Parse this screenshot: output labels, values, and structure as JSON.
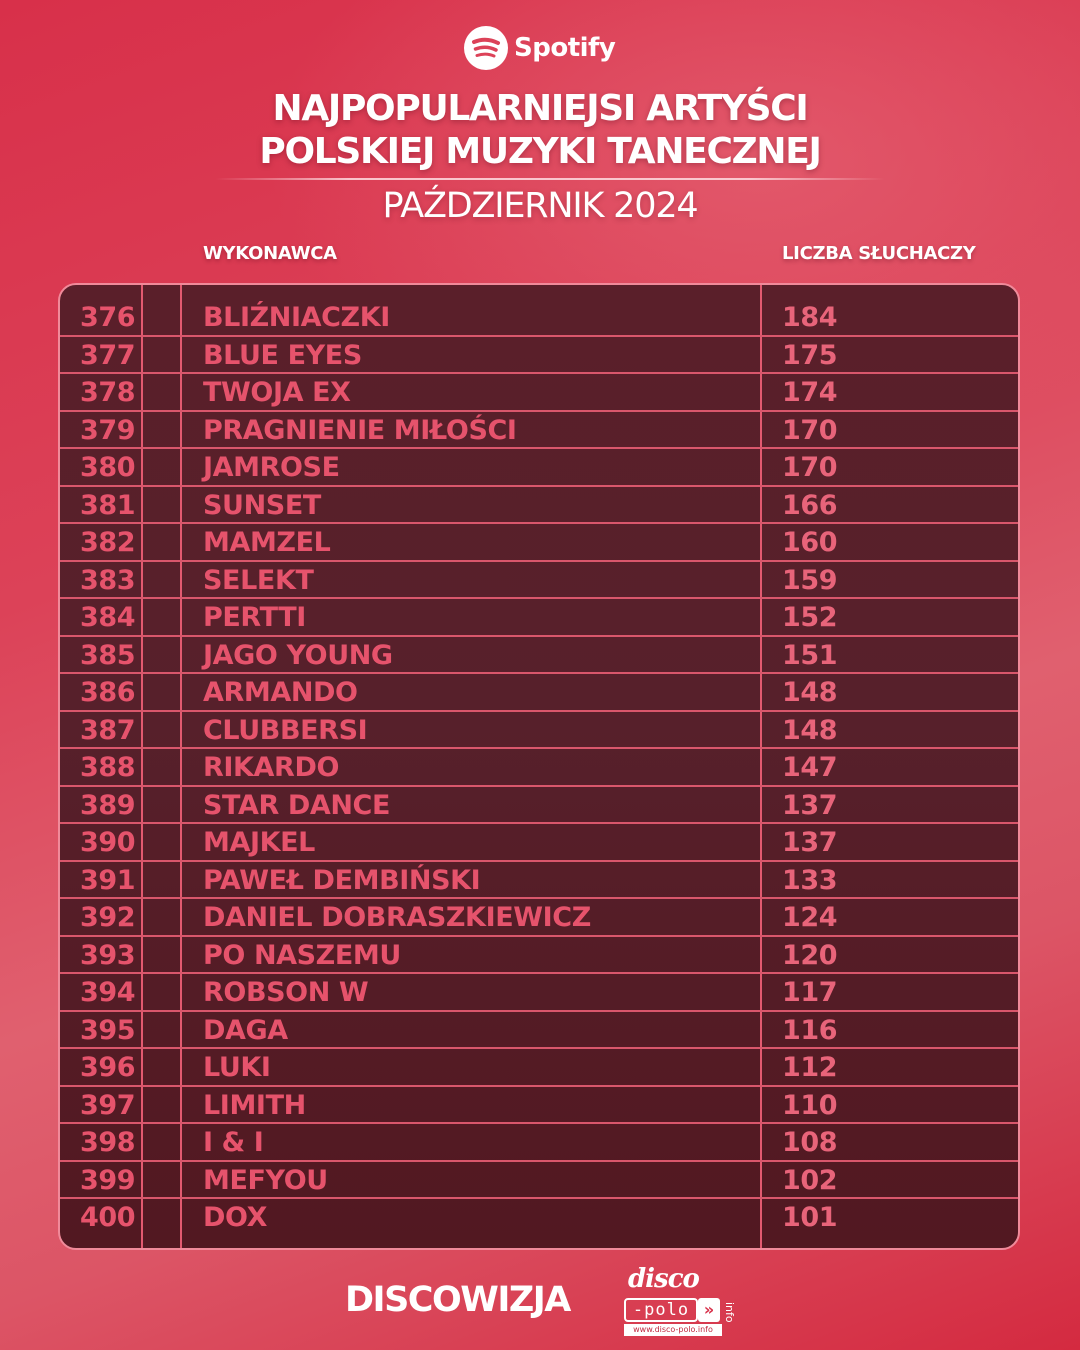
{
  "brand": {
    "logo_icon": "spotify-icon",
    "name": "Spotify"
  },
  "header": {
    "title_line1": "NAJPOPULARNIEJSI ARTYŚCI",
    "title_line2": "POLSKIEJ MUZYKI TANECZNEJ",
    "subtitle": "PAŹDZIERNIK 2024"
  },
  "table": {
    "columns": {
      "artist": "WYKONAWCA",
      "listeners": "LICZBA SŁUCHACZY"
    },
    "rows": [
      {
        "rank": "376",
        "artist": "BLIŹNIACZKI",
        "listeners": "184"
      },
      {
        "rank": "377",
        "artist": "BLUE EYES",
        "listeners": "175"
      },
      {
        "rank": "378",
        "artist": "TWOJA EX",
        "listeners": "174"
      },
      {
        "rank": "379",
        "artist": "PRAGNIENIE MIŁOŚCI",
        "listeners": "170"
      },
      {
        "rank": "380",
        "artist": "JAMROSE",
        "listeners": "170"
      },
      {
        "rank": "381",
        "artist": "SUNSET",
        "listeners": "166"
      },
      {
        "rank": "382",
        "artist": "MAMZEL",
        "listeners": "160"
      },
      {
        "rank": "383",
        "artist": "SELEKT",
        "listeners": "159"
      },
      {
        "rank": "384",
        "artist": "PERTTI",
        "listeners": "152"
      },
      {
        "rank": "385",
        "artist": "JAGO YOUNG",
        "listeners": "151"
      },
      {
        "rank": "386",
        "artist": "ARMANDO",
        "listeners": "148"
      },
      {
        "rank": "387",
        "artist": "CLUBBERSI",
        "listeners": "148"
      },
      {
        "rank": "388",
        "artist": "RIKARDO",
        "listeners": "147"
      },
      {
        "rank": "389",
        "artist": "STAR DANCE",
        "listeners": "137"
      },
      {
        "rank": "390",
        "artist": "MAJKEL",
        "listeners": "137"
      },
      {
        "rank": "391",
        "artist": "PAWEŁ DEMBIŃSKI",
        "listeners": "133"
      },
      {
        "rank": "392",
        "artist": "DANIEL DOBRASZKIEWICZ",
        "listeners": "124"
      },
      {
        "rank": "393",
        "artist": "PO NASZEMU",
        "listeners": "120"
      },
      {
        "rank": "394",
        "artist": "ROBSON W",
        "listeners": "117"
      },
      {
        "rank": "395",
        "artist": "DAGA",
        "listeners": "116"
      },
      {
        "rank": "396",
        "artist": "LUKI",
        "listeners": "112"
      },
      {
        "rank": "397",
        "artist": "LIMITH",
        "listeners": "110"
      },
      {
        "rank": "398",
        "artist": "I & I",
        "listeners": "108"
      },
      {
        "rank": "399",
        "artist": "MEFYOU",
        "listeners": "102"
      },
      {
        "rank": "400",
        "artist": "DOX",
        "listeners": "101"
      }
    ]
  },
  "footer": {
    "brand": "DISCOWIZJA",
    "partner_logo": {
      "top": "disco",
      "middle": "-polo",
      "arrows": "»",
      "side": "info",
      "url": "www.disco-polo.info"
    }
  },
  "colors": {
    "background": "#dc4258",
    "table_bg": "#57202b",
    "table_border": "#f08a9a",
    "row_text": "#e6536c",
    "grid_line": "#d9576c"
  }
}
